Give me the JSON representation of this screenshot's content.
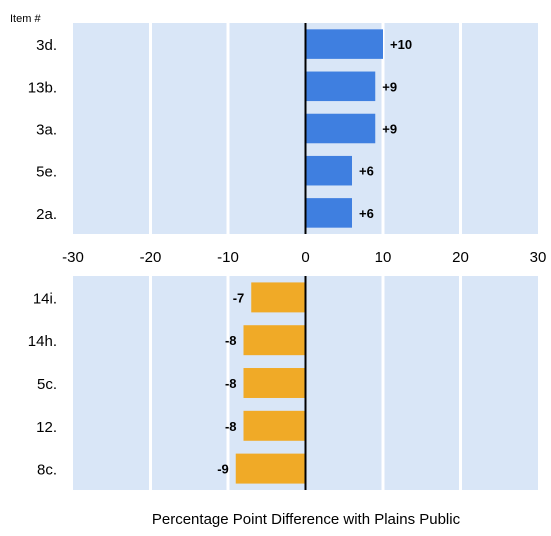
{
  "chart_data": [
    {
      "type": "bar",
      "orientation": "horizontal",
      "ylabel": "Item #",
      "categories": [
        "3d.",
        "13b.",
        "3a.",
        "5e.",
        "2a."
      ],
      "values": [
        10,
        9,
        9,
        6,
        6
      ],
      "data_labels": [
        "+10",
        "+9",
        "+9",
        "+6",
        "+6"
      ],
      "xlim": [
        -30,
        30
      ],
      "xticks": [
        "-30",
        "-20",
        "-10",
        "0",
        "10",
        "20",
        "30"
      ],
      "grid": true,
      "bar_color": "#3f7fe0"
    },
    {
      "type": "bar",
      "orientation": "horizontal",
      "categories": [
        "14i.",
        "14h.",
        "5c.",
        "12.",
        "8c."
      ],
      "values": [
        -7,
        -8,
        -8,
        -8,
        -9
      ],
      "data_labels": [
        "-7",
        "-8",
        "-8",
        "-8",
        "-9"
      ],
      "xlim": [
        -30,
        30
      ],
      "grid": true,
      "bar_color": "#f0aa27"
    }
  ],
  "xlabel": "Percentage Point Difference with Plains Public",
  "colors": {
    "plot_background": "#d9e6f7",
    "gridline": "#ffffff",
    "zero_line": "#000000",
    "text": "#000000"
  }
}
